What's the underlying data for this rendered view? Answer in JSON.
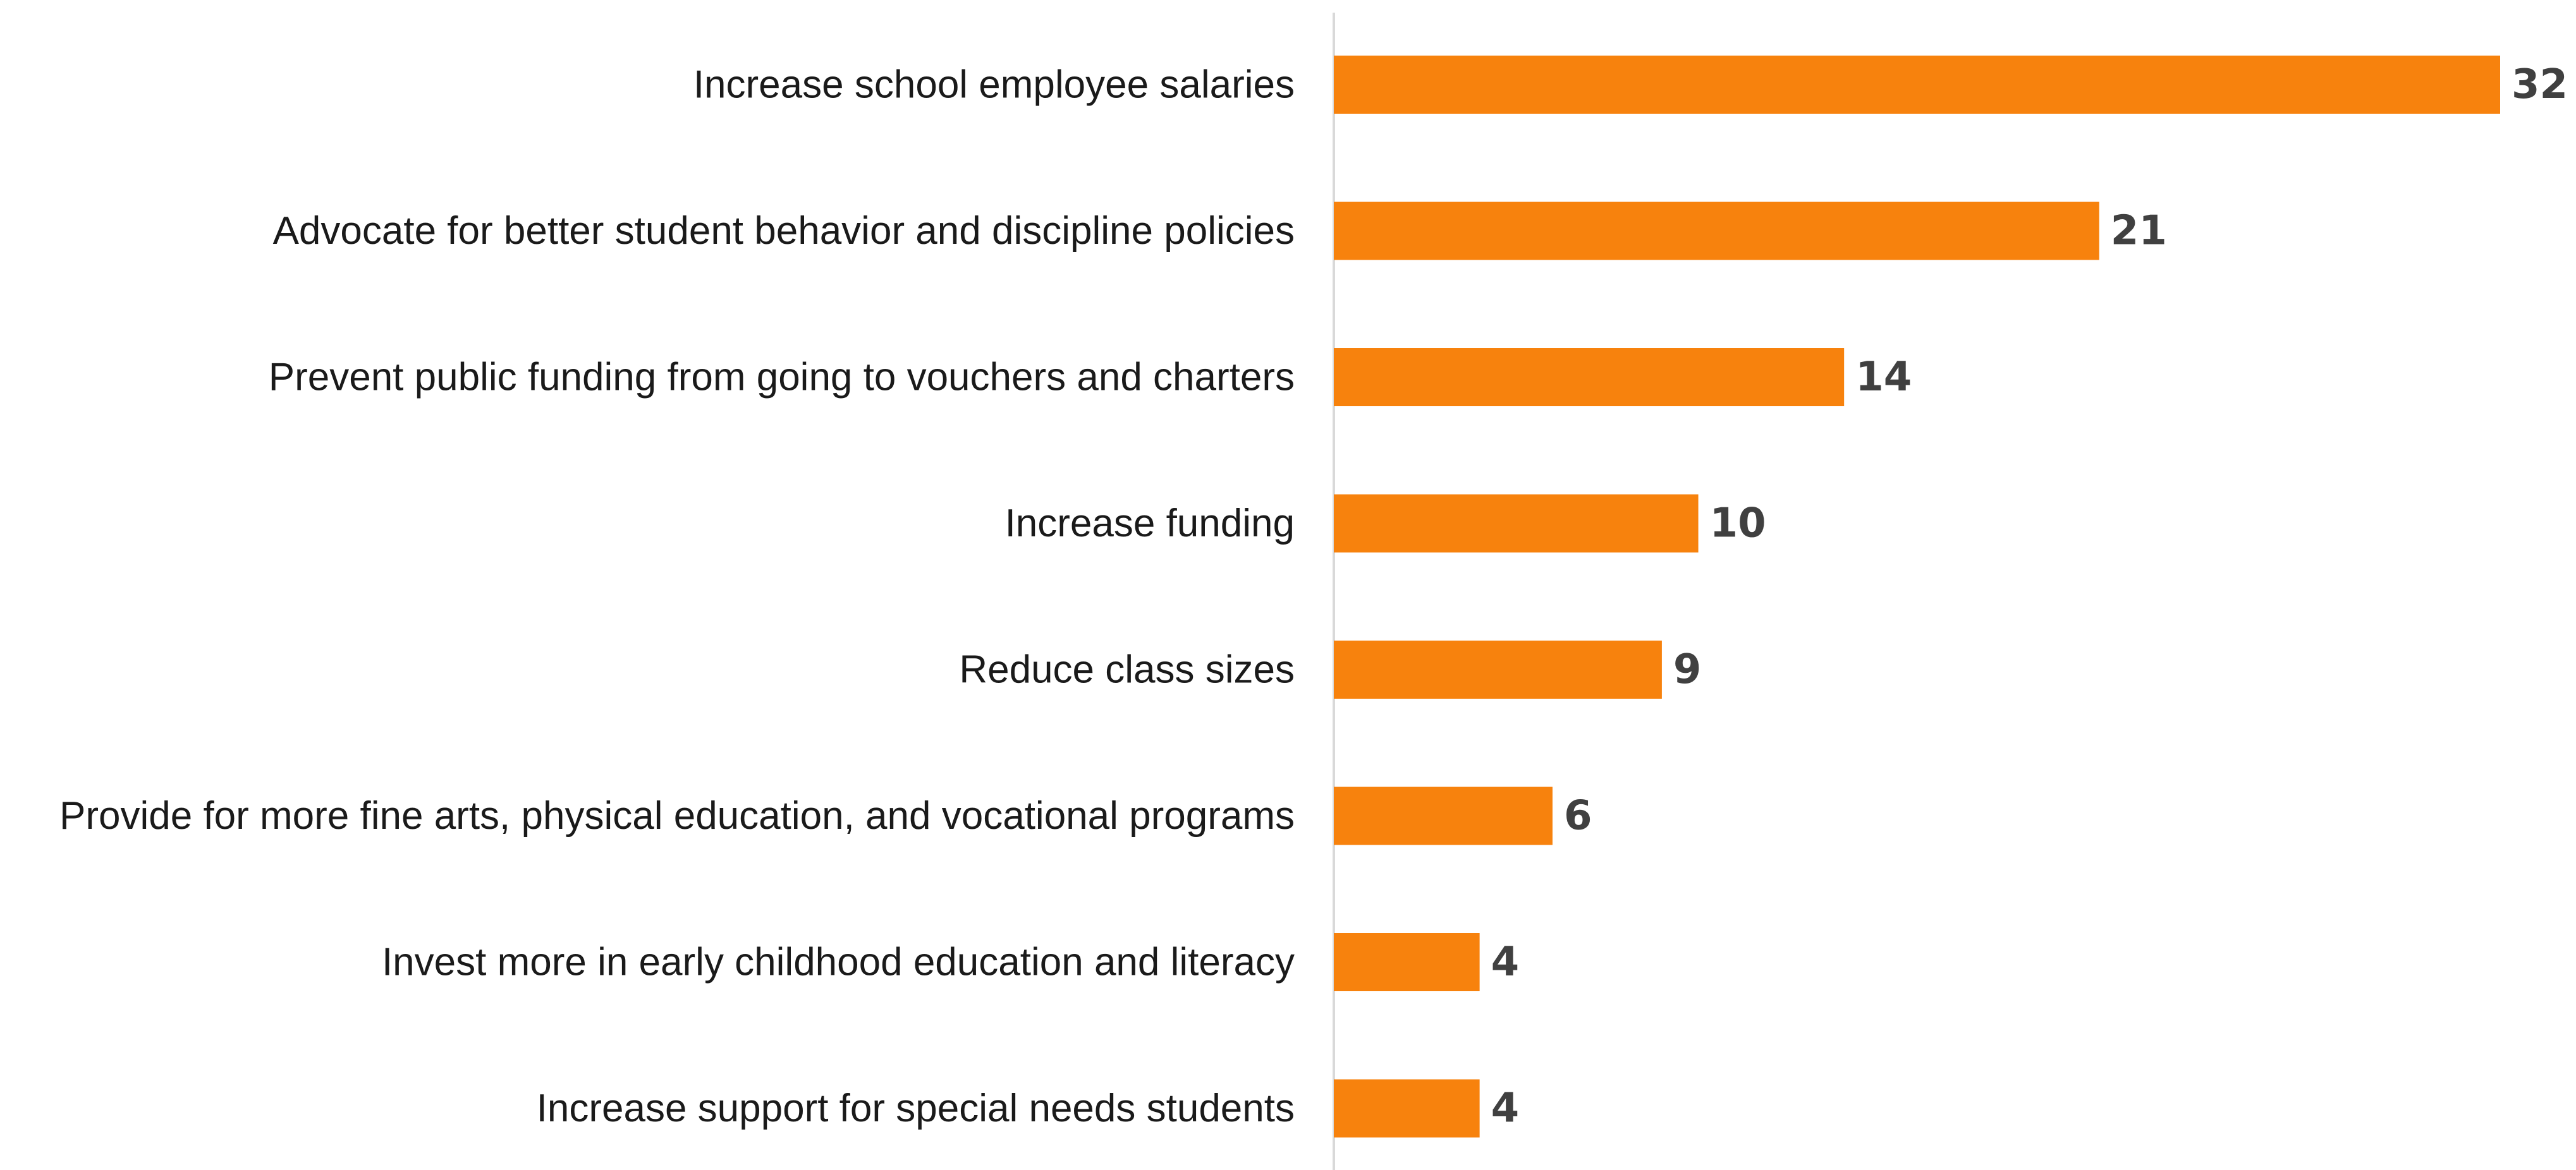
{
  "chart_data": {
    "type": "bar",
    "orientation": "horizontal",
    "categories": [
      "Increase school employee salaries",
      "Advocate for better student behavior and discipline policies",
      "Prevent public funding from going to vouchers and charters",
      "Increase funding",
      "Reduce class sizes",
      "Provide for more fine arts, physical education, and vocational programs",
      "Invest more in early childhood education and literacy",
      "Increase support for special needs students"
    ],
    "values": [
      32,
      21,
      14,
      10,
      9,
      6,
      4,
      4
    ],
    "data_labels": [
      "32",
      "21",
      "14",
      "10",
      "9",
      "6",
      "4",
      "4"
    ],
    "title": "",
    "xlabel": "",
    "ylabel": "",
    "xlim": [
      0,
      32
    ],
    "grid": false,
    "legend": "none",
    "bar_color": "#F7820D",
    "axis_color": "#D9D9D9"
  }
}
